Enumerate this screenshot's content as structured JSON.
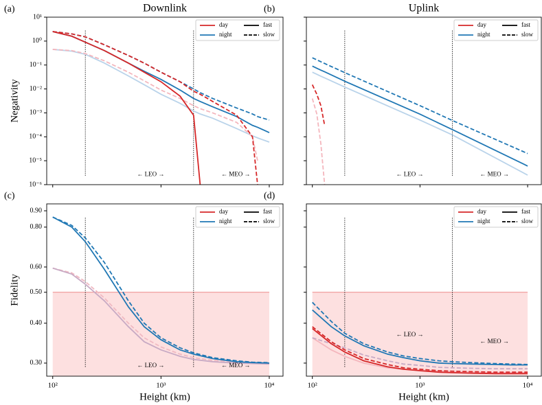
{
  "chart_data": [
    {
      "type": "line",
      "panel": "(a)",
      "title": "Downlink",
      "ylabel": "Negativity",
      "xlog": true,
      "ylog": true,
      "xlim": [
        88,
        13400
      ],
      "ylim": [
        1e-06,
        10
      ],
      "xticks": [
        100,
        1000,
        10000
      ],
      "yticks": [
        {
          "value": 10,
          "label": "10¹"
        },
        {
          "value": 1,
          "label": "10⁰"
        },
        {
          "value": 0.1,
          "label": "10⁻¹"
        },
        {
          "value": 0.01,
          "label": "10⁻²"
        },
        {
          "value": 0.001,
          "label": "10⁻³"
        },
        {
          "value": 0.0001,
          "label": "10⁻⁴"
        },
        {
          "value": 1e-05,
          "label": "10⁻⁵"
        },
        {
          "value": 1e-06,
          "label": "10⁻⁶"
        }
      ],
      "x": [
        100,
        150,
        200,
        300,
        500,
        700,
        1000,
        1500,
        2000,
        2300,
        3000,
        5000,
        7000,
        7800,
        10000
      ],
      "series": [
        {
          "color": "#b9d3ea",
          "dash": false,
          "values": [
            0.45,
            0.38,
            0.28,
            0.12,
            0.035,
            0.015,
            0.006,
            0.0025,
            0.0012,
            0.0009,
            0.0006,
            0.00022,
            0.00011,
            9e-05,
            6e-05
          ]
        },
        {
          "color": "#f4b6bd",
          "dash": true,
          "values": [
            0.45,
            0.4,
            0.3,
            0.15,
            0.05,
            0.022,
            0.009,
            0.004,
            0.002,
            0.0015,
            0.001,
            0.0004,
            0.0001,
            1e-05,
            null
          ]
        },
        {
          "color": "#1f77b4",
          "dash": false,
          "values": [
            2.5,
            1.6,
            0.9,
            0.4,
            0.12,
            0.055,
            0.025,
            0.009,
            0.004,
            0.003,
            0.0018,
            0.0007,
            0.0003,
            0.00025,
            0.00015
          ]
        },
        {
          "color": "#1f77b4",
          "dash": true,
          "values": [
            2.5,
            2.0,
            1.5,
            0.7,
            0.25,
            0.12,
            0.05,
            0.02,
            0.01,
            0.007,
            0.004,
            0.0016,
            0.0009,
            0.0007,
            0.0005
          ]
        },
        {
          "color": "#d62728",
          "dash": false,
          "values": [
            2.5,
            1.6,
            0.9,
            0.4,
            0.12,
            0.05,
            0.02,
            0.005,
            0.0008,
            1e-06,
            null,
            null,
            null,
            null,
            null
          ]
        },
        {
          "color": "#d62728",
          "dash": true,
          "values": [
            2.5,
            2.0,
            1.5,
            0.7,
            0.25,
            0.12,
            0.05,
            0.02,
            0.008,
            0.006,
            0.003,
            0.0008,
            0.0001,
            1e-06,
            null
          ]
        }
      ],
      "legend": [
        {
          "label": "day",
          "color": "#d62728"
        },
        {
          "label": "night",
          "color": "#1f77b4"
        },
        {
          "label": "fast",
          "dash": false
        },
        {
          "label": "slow",
          "dash": true
        }
      ],
      "vlines": [
        200,
        2000
      ],
      "annotations": [
        "← LEO →",
        "← MEO →"
      ]
    },
    {
      "type": "line",
      "panel": "(b)",
      "title": "Uplink",
      "xlog": true,
      "ylog": true,
      "xlim": [
        88,
        13400
      ],
      "ylim": [
        1e-06,
        10
      ],
      "xticks": [
        100,
        1000,
        10000
      ],
      "yticks": [
        10,
        1,
        0.1,
        0.01,
        0.001,
        0.0001,
        1e-05,
        1e-06
      ],
      "x": [
        100,
        110,
        120,
        130,
        200,
        1000,
        2000,
        10000
      ],
      "series": [
        {
          "color": "#b9d3ea",
          "dash": false,
          "values": [
            0.05,
            0.041,
            0.034,
            0.029,
            0.012,
            0.0005,
            0.00012,
            2.5e-06
          ]
        },
        {
          "color": "#f4b6bd",
          "dash": true,
          "values": [
            0.004,
            0.0009,
            5e-05,
            1e-06,
            null,
            null,
            null,
            null
          ]
        },
        {
          "color": "#1f77b4",
          "dash": false,
          "values": [
            0.09,
            0.073,
            0.061,
            0.052,
            0.021,
            0.00088,
            0.0002,
            6e-06
          ]
        },
        {
          "color": "#1f77b4",
          "dash": true,
          "values": [
            0.2,
            0.164,
            0.137,
            0.116,
            0.048,
            0.002,
            0.00048,
            2e-05
          ]
        },
        {
          "color": "#d62728",
          "dash": true,
          "values": [
            0.015,
            0.006,
            0.002,
            0.0003,
            null,
            null,
            null,
            null
          ]
        }
      ],
      "legend": [
        {
          "label": "day",
          "color": "#d62728"
        },
        {
          "label": "night",
          "color": "#1f77b4"
        },
        {
          "label": "fast",
          "dash": false
        },
        {
          "label": "slow",
          "dash": true
        }
      ],
      "vlines": [
        200,
        2000
      ],
      "annotations": [
        "← LEO →",
        "← MEO →"
      ]
    },
    {
      "type": "line",
      "panel": "(c)",
      "ylabel": "Fidelity",
      "xlabel": "Height (km)",
      "xlog": true,
      "ylog": true,
      "xlim": [
        88,
        13400
      ],
      "ylim": [
        0.273,
        0.946
      ],
      "xticks": [
        {
          "value": 100,
          "label": "10²"
        },
        {
          "value": 1000,
          "label": "10³"
        },
        {
          "value": 10000,
          "label": "10⁴"
        }
      ],
      "yticks": [
        {
          "value": 0.3,
          "label": "0.30"
        },
        {
          "value": 0.4,
          "label": "0.40"
        },
        {
          "value": 0.5,
          "label": "0.50"
        },
        {
          "value": 0.6,
          "label": "0.60"
        },
        {
          "value": 0.8,
          "label": "0.80"
        },
        {
          "value": 0.9,
          "label": "0.90"
        }
      ],
      "threshold": 0.5,
      "x": [
        100,
        150,
        200,
        300,
        500,
        700,
        1000,
        1500,
        2000,
        3000,
        5000,
        7000,
        10000
      ],
      "series": [
        {
          "color": "#f0b9c2",
          "dash": true,
          "values": [
            0.595,
            0.575,
            0.54,
            0.48,
            0.4,
            0.36,
            0.337,
            0.32,
            0.312,
            0.306,
            0.302,
            0.3,
            0.299
          ]
        },
        {
          "color": "#c8aac4",
          "dash": false,
          "values": [
            0.595,
            0.57,
            0.53,
            0.47,
            0.39,
            0.35,
            0.33,
            0.315,
            0.308,
            0.303,
            0.3,
            0.299,
            0.298
          ]
        },
        {
          "color": "#1f77b4",
          "dash": false,
          "values": [
            0.86,
            0.8,
            0.72,
            0.59,
            0.45,
            0.39,
            0.355,
            0.33,
            0.32,
            0.31,
            0.303,
            0.301,
            0.3
          ]
        },
        {
          "color": "#1f77b4",
          "dash": true,
          "values": [
            0.86,
            0.81,
            0.74,
            0.62,
            0.47,
            0.4,
            0.36,
            0.335,
            0.323,
            0.312,
            0.305,
            0.302,
            0.301
          ]
        }
      ],
      "legend": [
        {
          "label": "day",
          "color": "#d62728"
        },
        {
          "label": "night",
          "color": "#1f77b4"
        },
        {
          "label": "fast",
          "dash": false
        },
        {
          "label": "slow",
          "dash": true
        }
      ],
      "vlines": [
        200,
        2000
      ],
      "annotations": [
        "← LEO →",
        "← MEO →"
      ]
    },
    {
      "type": "line",
      "panel": "(d)",
      "xlabel": "Height (km)",
      "xlog": true,
      "ylog": true,
      "xlim": [
        88,
        13400
      ],
      "ylim": [
        0.273,
        0.946
      ],
      "xticks": [
        {
          "value": 100,
          "label": "10²"
        },
        {
          "value": 1000,
          "label": "10³"
        },
        {
          "value": 10000,
          "label": "10⁴"
        }
      ],
      "yticks": [
        0.3,
        0.4,
        0.5,
        0.6,
        0.8,
        0.9
      ],
      "threshold": 0.5,
      "x": [
        100,
        150,
        200,
        300,
        500,
        700,
        1000,
        1500,
        2000,
        3000,
        5000,
        7000,
        10000
      ],
      "series": [
        {
          "color": "#f4b6bd",
          "dash": false,
          "values": [
            0.36,
            0.33,
            0.315,
            0.3,
            0.29,
            0.287,
            0.285,
            0.283,
            0.282,
            0.281,
            0.28,
            0.28,
            0.28
          ]
        },
        {
          "color": "#c8aac4",
          "dash": true,
          "values": [
            0.36,
            0.345,
            0.335,
            0.318,
            0.305,
            0.298,
            0.295,
            0.291,
            0.29,
            0.289,
            0.288,
            0.288,
            0.288
          ]
        },
        {
          "color": "#d62728",
          "dash": false,
          "values": [
            0.385,
            0.345,
            0.325,
            0.305,
            0.292,
            0.287,
            0.284,
            0.281,
            0.28,
            0.279,
            0.278,
            0.278,
            0.278
          ]
        },
        {
          "color": "#d62728",
          "dash": true,
          "values": [
            0.39,
            0.35,
            0.33,
            0.31,
            0.297,
            0.29,
            0.287,
            0.284,
            0.283,
            0.282,
            0.281,
            0.281,
            0.281
          ]
        },
        {
          "color": "#1f77b4",
          "dash": false,
          "values": [
            0.44,
            0.39,
            0.365,
            0.34,
            0.32,
            0.312,
            0.305,
            0.3,
            0.299,
            0.298,
            0.297,
            0.296,
            0.296
          ]
        },
        {
          "color": "#1f77b4",
          "dash": true,
          "values": [
            0.465,
            0.405,
            0.372,
            0.345,
            0.325,
            0.316,
            0.31,
            0.305,
            0.303,
            0.301,
            0.299,
            0.298,
            0.297
          ]
        }
      ],
      "legend": [
        {
          "label": "day",
          "color": "#d62728"
        },
        {
          "label": "night",
          "color": "#1f77b4"
        },
        {
          "label": "fast",
          "dash": false
        },
        {
          "label": "slow",
          "dash": true
        }
      ],
      "vlines": [
        200,
        2000
      ],
      "annotations": [
        "← LEO →",
        "← MEO →"
      ]
    }
  ]
}
